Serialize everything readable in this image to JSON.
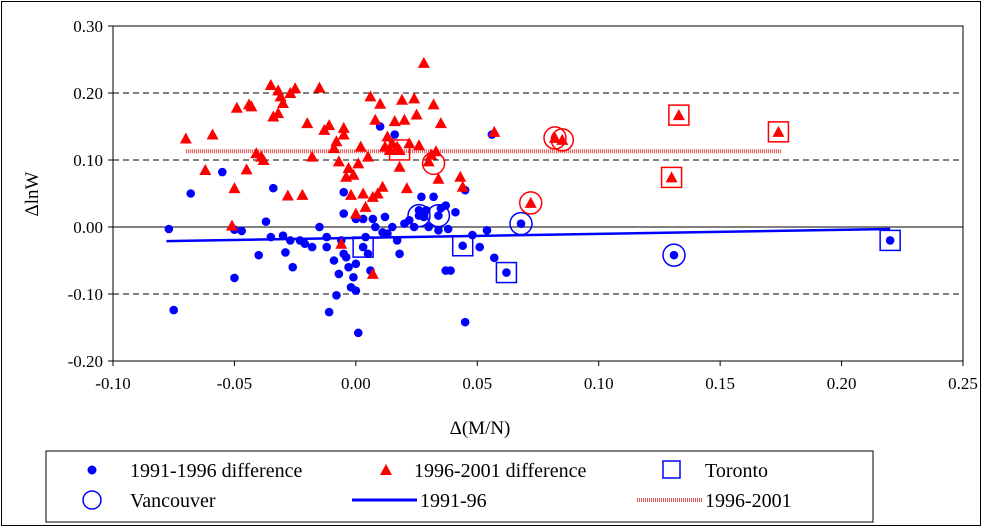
{
  "chart_data": {
    "type": "scatter",
    "title": "",
    "xlabel": "Δ(M/N)",
    "ylabel": "ΔlnW",
    "xlim": [
      -0.1,
      0.25
    ],
    "ylim": [
      -0.2,
      0.3
    ],
    "x_ticks": [
      "-0.10",
      "-0.05",
      "0.00",
      "0.05",
      "0.10",
      "0.15",
      "0.20",
      "0.25"
    ],
    "y_ticks": [
      "0.30",
      "0.20",
      "0.10",
      "0.00",
      "-0.10",
      "-0.20"
    ],
    "grid": "horizontal dashed",
    "legend_position": "bottom",
    "colors": {
      "blue": "#0000FF",
      "red": "#FF0000",
      "trend_red": "#E05050"
    },
    "series": [
      {
        "name": "1991-1996 difference",
        "marker": "circle",
        "color": "#0000FF",
        "points": [
          [
            -0.077,
            -0.003
          ],
          [
            -0.075,
            -0.124
          ],
          [
            -0.068,
            0.05
          ],
          [
            -0.055,
            0.082
          ],
          [
            -0.05,
            -0.004
          ],
          [
            -0.05,
            -0.076
          ],
          [
            -0.047,
            -0.006
          ],
          [
            -0.04,
            -0.042
          ],
          [
            -0.037,
            0.008
          ],
          [
            -0.035,
            -0.015
          ],
          [
            -0.034,
            0.058
          ],
          [
            -0.03,
            -0.013
          ],
          [
            -0.029,
            -0.038
          ],
          [
            -0.027,
            -0.02
          ],
          [
            -0.026,
            -0.06
          ],
          [
            -0.023,
            -0.02
          ],
          [
            -0.021,
            -0.025
          ],
          [
            -0.018,
            -0.03
          ],
          [
            -0.015,
            0.0
          ],
          [
            -0.012,
            -0.015
          ],
          [
            -0.012,
            -0.03
          ],
          [
            -0.011,
            -0.127
          ],
          [
            -0.009,
            -0.05
          ],
          [
            -0.008,
            -0.102
          ],
          [
            -0.007,
            -0.07
          ],
          [
            -0.006,
            -0.02
          ],
          [
            -0.005,
            0.02
          ],
          [
            -0.005,
            -0.04
          ],
          [
            -0.004,
            -0.045
          ],
          [
            -0.003,
            -0.06
          ],
          [
            -0.002,
            -0.09
          ],
          [
            -0.001,
            -0.075
          ],
          [
            0.0,
            -0.095
          ],
          [
            0.0,
            -0.055
          ],
          [
            -0.005,
            0.052
          ],
          [
            0.0,
            0.012
          ],
          [
            0.001,
            -0.158
          ],
          [
            0.003,
            0.012
          ],
          [
            0.004,
            -0.015
          ],
          [
            0.005,
            -0.04
          ],
          [
            0.006,
            -0.065
          ],
          [
            0.007,
            0.012
          ],
          [
            0.008,
            0.0
          ],
          [
            0.01,
            0.15
          ],
          [
            0.011,
            -0.008
          ],
          [
            0.012,
            0.015
          ],
          [
            0.013,
            -0.01
          ],
          [
            0.015,
            0.0
          ],
          [
            0.016,
            0.138
          ],
          [
            0.017,
            -0.02
          ],
          [
            0.018,
            -0.04
          ],
          [
            0.02,
            0.005
          ],
          [
            0.022,
            0.01
          ],
          [
            0.024,
            0.0
          ],
          [
            0.026,
            0.025
          ],
          [
            0.027,
            0.045
          ],
          [
            0.028,
            0.015
          ],
          [
            0.029,
            0.025
          ],
          [
            0.03,
            0.0
          ],
          [
            0.032,
            0.045
          ],
          [
            0.034,
            -0.005
          ],
          [
            0.035,
            0.028
          ],
          [
            0.037,
            0.032
          ],
          [
            0.038,
            -0.003
          ],
          [
            0.037,
            -0.065
          ],
          [
            0.039,
            -0.065
          ],
          [
            0.041,
            0.022
          ],
          [
            0.045,
            0.055
          ],
          [
            0.045,
            -0.142
          ],
          [
            0.048,
            -0.012
          ],
          [
            0.051,
            -0.03
          ],
          [
            0.054,
            -0.005
          ],
          [
            0.056,
            0.138
          ],
          [
            0.057,
            -0.046
          ],
          [
            0.003,
            -0.03
          ],
          [
            0.026,
            0.017
          ],
          [
            0.034,
            0.017
          ],
          [
            0.044,
            -0.028
          ],
          [
            0.062,
            -0.068
          ],
          [
            0.068,
            0.005
          ],
          [
            0.131,
            -0.042
          ],
          [
            0.22,
            -0.02
          ]
        ]
      },
      {
        "name": "1996-2001 difference",
        "marker": "triangle",
        "color": "#FF0000",
        "points": [
          [
            -0.07,
            0.132
          ],
          [
            -0.062,
            0.085
          ],
          [
            -0.059,
            0.138
          ],
          [
            -0.051,
            0.002
          ],
          [
            -0.05,
            0.058
          ],
          [
            -0.049,
            0.178
          ],
          [
            -0.045,
            0.086
          ],
          [
            -0.044,
            0.183
          ],
          [
            -0.043,
            0.18
          ],
          [
            -0.041,
            0.11
          ],
          [
            -0.039,
            0.105
          ],
          [
            -0.038,
            0.1
          ],
          [
            -0.035,
            0.212
          ],
          [
            -0.034,
            0.165
          ],
          [
            -0.032,
            0.17
          ],
          [
            -0.032,
            0.204
          ],
          [
            -0.031,
            0.195
          ],
          [
            -0.03,
            0.185
          ],
          [
            -0.028,
            0.047
          ],
          [
            -0.027,
            0.2
          ],
          [
            -0.025,
            0.207
          ],
          [
            -0.022,
            0.048
          ],
          [
            -0.02,
            0.155
          ],
          [
            -0.018,
            0.105
          ],
          [
            -0.015,
            0.208
          ],
          [
            -0.013,
            0.145
          ],
          [
            -0.011,
            0.152
          ],
          [
            -0.009,
            0.118
          ],
          [
            -0.008,
            0.128
          ],
          [
            -0.007,
            0.098
          ],
          [
            -0.006,
            -0.025
          ],
          [
            -0.005,
            0.148
          ],
          [
            -0.005,
            0.138
          ],
          [
            -0.004,
            0.075
          ],
          [
            -0.003,
            0.088
          ],
          [
            -0.002,
            0.048
          ],
          [
            -0.001,
            0.078
          ],
          [
            0.0,
            0.02
          ],
          [
            0.001,
            0.095
          ],
          [
            0.002,
            0.12
          ],
          [
            0.003,
            0.05
          ],
          [
            0.004,
            0.03
          ],
          [
            0.005,
            0.105
          ],
          [
            0.006,
            0.195
          ],
          [
            0.007,
            0.045
          ],
          [
            0.008,
            0.16
          ],
          [
            0.009,
            0.05
          ],
          [
            0.01,
            0.184
          ],
          [
            0.011,
            0.06
          ],
          [
            0.012,
            0.12
          ],
          [
            0.013,
            0.135
          ],
          [
            0.014,
            0.115
          ],
          [
            0.015,
            0.125
          ],
          [
            0.016,
            0.158
          ],
          [
            0.017,
            0.12
          ],
          [
            0.018,
            0.09
          ],
          [
            0.019,
            0.19
          ],
          [
            0.02,
            0.16
          ],
          [
            0.021,
            0.058
          ],
          [
            0.022,
            0.125
          ],
          [
            0.024,
            0.192
          ],
          [
            0.025,
            0.168
          ],
          [
            0.026,
            0.122
          ],
          [
            0.028,
            0.245
          ],
          [
            0.03,
            0.098
          ],
          [
            0.031,
            0.108
          ],
          [
            0.032,
            0.183
          ],
          [
            0.033,
            0.113
          ],
          [
            0.034,
            0.072
          ],
          [
            0.035,
            0.155
          ],
          [
            0.043,
            0.075
          ],
          [
            0.044,
            0.06
          ],
          [
            0.057,
            0.142
          ],
          [
            0.072,
            0.036
          ],
          [
            0.082,
            0.133
          ],
          [
            0.085,
            0.13
          ],
          [
            0.13,
            0.074
          ],
          [
            0.133,
            0.167
          ],
          [
            0.174,
            0.142
          ],
          [
            0.007,
            -0.07
          ],
          [
            0.018,
            0.115
          ]
        ]
      },
      {
        "name": "Toronto",
        "marker": "square-outline",
        "color": "#0000FF",
        "points": [
          [
            0.003,
            -0.03
          ],
          [
            0.044,
            -0.028
          ],
          [
            0.062,
            -0.068
          ],
          [
            0.22,
            -0.02
          ]
        ]
      },
      {
        "name": "Toronto (1996-2001)",
        "marker": "square-outline",
        "color": "#FF0000",
        "points": [
          [
            0.018,
            0.115
          ],
          [
            0.13,
            0.074
          ],
          [
            0.133,
            0.167
          ],
          [
            0.174,
            0.142
          ]
        ]
      },
      {
        "name": "Vancouver",
        "marker": "circle-outline",
        "color": "#0000FF",
        "points": [
          [
            0.026,
            0.017
          ],
          [
            0.034,
            0.017
          ],
          [
            0.068,
            0.005
          ],
          [
            0.131,
            -0.042
          ]
        ]
      },
      {
        "name": "Vancouver (1996-2001)",
        "marker": "circle-outline",
        "color": "#FF0000",
        "points": [
          [
            0.032,
            0.095
          ],
          [
            0.072,
            0.036
          ],
          [
            0.082,
            0.133
          ],
          [
            0.085,
            0.13
          ]
        ]
      }
    ],
    "trend_lines": [
      {
        "name": "1991-96",
        "color": "#0000FF",
        "x": [
          -0.078,
          0.22
        ],
        "y": [
          -0.021,
          -0.003
        ]
      },
      {
        "name": "1996-2001",
        "color": "#E05050",
        "x": [
          -0.07,
          0.175
        ],
        "y": [
          0.113,
          0.113
        ]
      }
    ],
    "legend": {
      "row1": [
        "1991-1996 difference",
        "1996-2001 difference",
        "Toronto"
      ],
      "row2": [
        "Vancouver",
        "1991-96",
        "1996-2001"
      ]
    }
  }
}
